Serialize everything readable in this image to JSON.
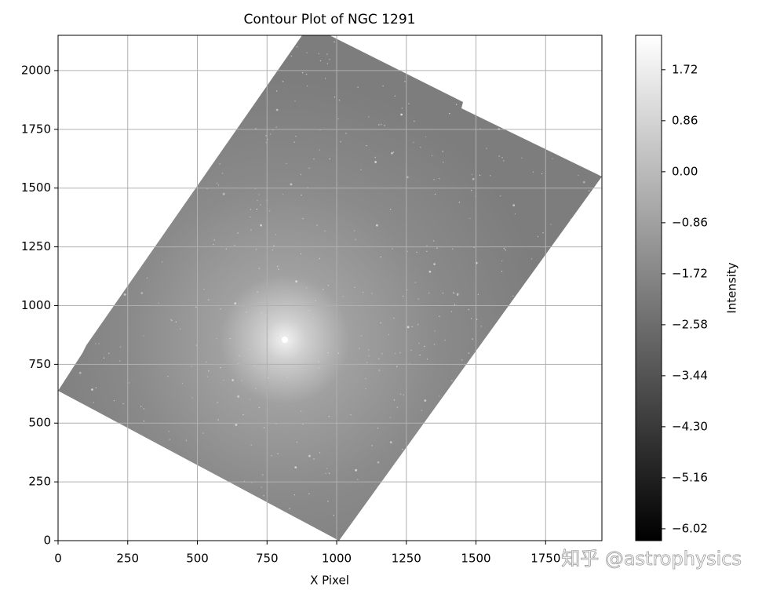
{
  "chart_data": {
    "type": "image",
    "title": "Contour Plot of NGC 1291",
    "xlabel": "X Pixel",
    "xlim": [
      0,
      1952
    ],
    "ylim": [
      0,
      2150
    ],
    "xticks": [
      0,
      250,
      500,
      750,
      1000,
      1250,
      1500,
      1750
    ],
    "yticks": [
      0,
      250,
      500,
      750,
      1000,
      1250,
      1500,
      1750,
      2000
    ],
    "grid": true,
    "cmap": "gray",
    "colorbar": {
      "label": "Intensity",
      "clim": [
        -6.22,
        2.3
      ],
      "ticks": [
        {
          "value": 1.72,
          "label": "1.72"
        },
        {
          "value": 0.86,
          "label": "0.86"
        },
        {
          "value": 0.0,
          "label": "0.00"
        },
        {
          "value": -0.86,
          "label": "−0.86"
        },
        {
          "value": -1.72,
          "label": "−1.72"
        },
        {
          "value": -2.58,
          "label": "−2.58"
        },
        {
          "value": -3.44,
          "label": "−3.44"
        },
        {
          "value": -4.3,
          "label": "−4.30"
        },
        {
          "value": -5.16,
          "label": "−5.16"
        },
        {
          "value": -6.02,
          "label": "−6.02"
        }
      ]
    }
  },
  "watermark": "知乎 @astrophysics"
}
